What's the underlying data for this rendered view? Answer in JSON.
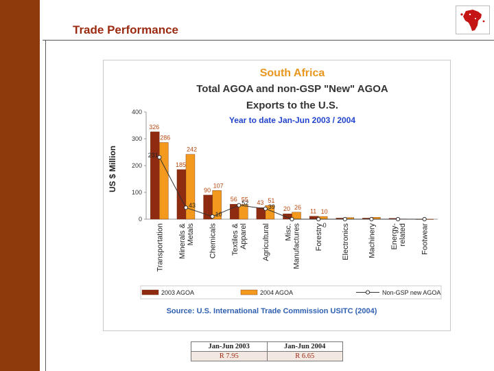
{
  "slide": {
    "title": "Trade Performance"
  },
  "chart_data": {
    "type": "bar",
    "title": "South Africa",
    "subtitle_lines": [
      "Total AGOA and non-GSP \"New\" AGOA",
      "Exports to the U.S."
    ],
    "period": "Year to date Jan-Jun 2003 / 2004",
    "ylabel": "US $ Million",
    "ylim": [
      0,
      400
    ],
    "yticks": [
      0,
      100,
      200,
      300,
      400
    ],
    "categories": [
      [
        "Transportation"
      ],
      [
        "Minerals &",
        "Metals"
      ],
      [
        "Chemicals"
      ],
      [
        "Textiles &",
        "Apparel"
      ],
      [
        "Agricultural"
      ],
      [
        "Misc.",
        "Manufactures"
      ],
      [
        "Forestry"
      ],
      [
        "Electronics"
      ],
      [
        "Machinery"
      ],
      [
        "Energy-",
        "related"
      ],
      [
        "Footwear"
      ]
    ],
    "series": [
      {
        "name": "2003 AGOA",
        "type": "bar",
        "color": "#8e2b10",
        "values": [
          326,
          185,
          90,
          56,
          43,
          20,
          11,
          4,
          4,
          3,
          0
        ],
        "labels": [
          "326",
          "185",
          "90",
          "56",
          "43",
          "20",
          "11",
          "",
          "",
          "",
          ""
        ]
      },
      {
        "name": "2004 AGOA",
        "type": "bar",
        "color": "#f39a1e",
        "values": [
          286,
          242,
          107,
          55,
          51,
          26,
          10,
          6,
          7,
          1,
          0
        ],
        "labels": [
          "286",
          "242",
          "107",
          "55",
          "51",
          "26",
          "10",
          "",
          "",
          "",
          ""
        ]
      },
      {
        "name": "Non-GSP new AGOA",
        "type": "line",
        "color": "#333333",
        "values": [
          231,
          43,
          10,
          52,
          39,
          0,
          0,
          0,
          0,
          0,
          0
        ],
        "labels": [
          "231",
          "43",
          "10",
          "52",
          "39",
          "",
          "0",
          "",
          "",
          "",
          ""
        ]
      }
    ],
    "legend_position": "bottom",
    "source": "Source: U.S. International Trade Commission USITC (2004)"
  },
  "rates": {
    "headers": [
      "Jan-Jun 2003",
      "Jan-Jun 2004"
    ],
    "values": [
      "R 7.95",
      "R 6.65"
    ]
  },
  "colors": {
    "brand": "#8e3a0c",
    "title": "#9b2a10",
    "chart_title": "#e8961e",
    "period": "#2244cc",
    "source": "#2e5fb0"
  },
  "logo": {
    "icon": "africa-map-icon"
  }
}
